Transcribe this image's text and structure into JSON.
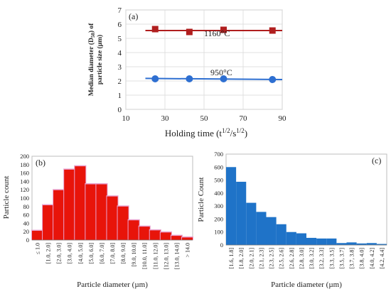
{
  "chart_data": [
    {
      "panel": "(a)",
      "type": "scatter",
      "title": "",
      "xlabel": "Holding time (t",
      "xlabel_sup1": "1/2",
      "xlabel_mid": "/s",
      "xlabel_sup2": "1/2",
      "xlabel_end": ")",
      "ylabel_line1": "Median diameter (D",
      "ylabel_sub": "50",
      "ylabel_line1_end": ") of",
      "ylabel_line2": "particle size (µm)",
      "xlim": [
        10,
        90
      ],
      "ylim": [
        0,
        7
      ],
      "xticks": [
        "10",
        "30",
        "50",
        "70",
        "90"
      ],
      "yticks": [
        "0",
        "1",
        "2",
        "3",
        "4",
        "5",
        "6",
        "7"
      ],
      "grid": true,
      "series": [
        {
          "name": "1160°C",
          "color": "#b01e1e",
          "marker": "square",
          "x": [
            25,
            42.5,
            60,
            85
          ],
          "y": [
            5.65,
            5.45,
            5.6,
            5.55
          ],
          "fit": [
            5.55,
            5.55
          ]
        },
        {
          "name": "950°C",
          "color": "#2e6fd1",
          "marker": "circle",
          "x": [
            25,
            42.5,
            60,
            85
          ],
          "y": [
            2.15,
            2.15,
            2.15,
            2.1
          ],
          "fit": [
            2.18,
            2.1
          ]
        }
      ]
    },
    {
      "panel": "(b)",
      "type": "bar",
      "title": "",
      "xlabel": "Particle diameter (µm)",
      "ylabel": "Particle count",
      "ylim": [
        0,
        200
      ],
      "yticks": [
        "0",
        "20",
        "40",
        "60",
        "80",
        "100",
        "120",
        "140",
        "160",
        "180",
        "200"
      ],
      "color": "#e8140a",
      "categories": [
        "≤ 1.0",
        "[1.0, 2.0]",
        "[2.0, 3.0]",
        "[3.0, 4.0]",
        "[4.0, 5.0]",
        "[5.0, 6.0]",
        "[6.0, 7.0]",
        "[7.0, 8.0]",
        "[8.0, 9.0]",
        "[9.0, 10.0]",
        "[10.0, 11.0]",
        "[11.0, 12.0]",
        "[12.0, 13.0]",
        "[13.0, 14.0]",
        "> 14.0"
      ],
      "values": [
        22,
        83,
        119,
        168,
        176,
        133,
        133,
        104,
        80,
        47,
        32,
        23,
        18,
        10,
        6
      ]
    },
    {
      "panel": "(c)",
      "type": "bar",
      "title": "",
      "xlabel": "Particle diameter (µm)",
      "ylabel": "Particle Count",
      "ylim": [
        0,
        700
      ],
      "yticks": [
        "0",
        "100",
        "200",
        "300",
        "400",
        "500",
        "600",
        "700"
      ],
      "color": "#1f73c8",
      "categories": [
        "[1.6, 1.8]",
        "[1.8, 2.0]",
        "[2.0, 2.1]",
        "[2.1, 2.3]",
        "[2.3, 2.5]",
        "[2.5, 2.6]",
        "[2.6, 2.8]",
        "[2.8, 3.0]",
        "[3.0, 3.2]",
        "[3.2, 3.3]",
        "[3.3, 3.5]",
        "[3.5, 3.7]",
        "[3.7, 3.8]",
        "[3.8, 4.0]",
        "[4.0, 4.2]",
        "[4.2, 4.4]"
      ],
      "values": [
        600,
        487,
        325,
        255,
        215,
        160,
        100,
        90,
        55,
        50,
        50,
        15,
        20,
        12,
        15,
        8
      ]
    }
  ]
}
